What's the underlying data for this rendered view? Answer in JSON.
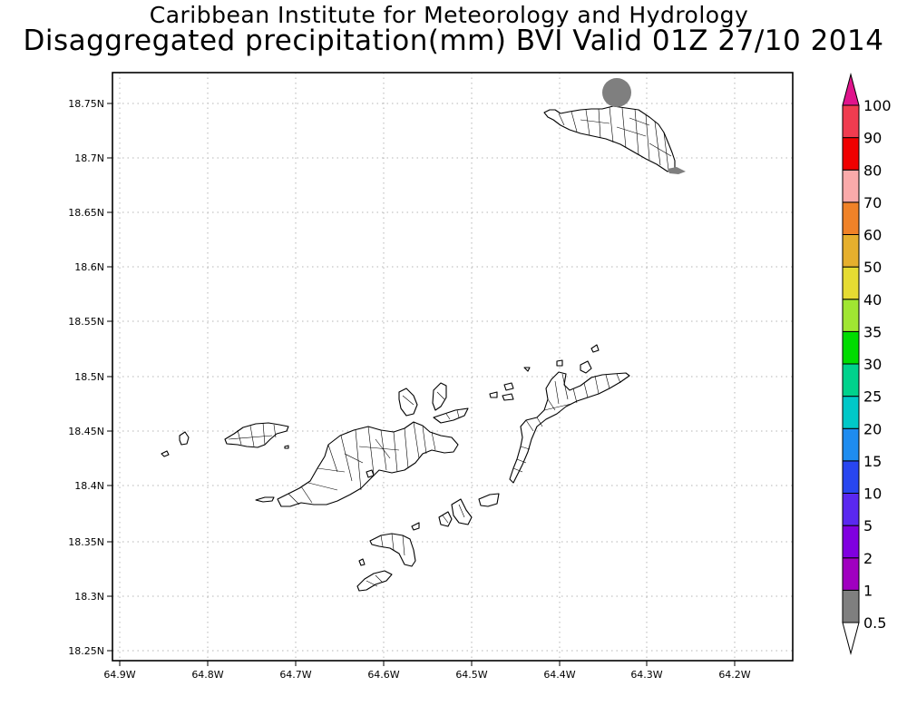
{
  "header": {
    "institute": "Caribbean Institute for Meteorology and Hydrology",
    "title": "Disaggregated precipitation(mm) BVI Valid 01Z 27/10 2014"
  },
  "axes": {
    "lat_ticks": [
      "18.75N",
      "18.7N",
      "18.65N",
      "18.6N",
      "18.55N",
      "18.5N",
      "18.45N",
      "18.4N",
      "18.35N",
      "18.3N",
      "18.25N"
    ],
    "lon_ticks": [
      "64.9W",
      "64.8W",
      "64.7W",
      "64.6W",
      "64.5W",
      "64.4W",
      "64.3W",
      "64.2W"
    ],
    "grid": "dotted"
  },
  "colorbar": {
    "labels": [
      "0.5",
      "1",
      "2",
      "5",
      "10",
      "15",
      "20",
      "25",
      "30",
      "35",
      "40",
      "50",
      "60",
      "70",
      "80",
      "90",
      "100"
    ],
    "colors": [
      "#7f7f7f",
      "#a000c0",
      "#8000e0",
      "#5a28f0",
      "#2846f0",
      "#1e8cf0",
      "#00c8c8",
      "#00d28c",
      "#00dc00",
      "#a0e632",
      "#e6dc32",
      "#e6af2d",
      "#f08228",
      "#faaaaa",
      "#f00000",
      "#f03c50",
      "#e0148c"
    ],
    "below_color": "#ffffff"
  },
  "precip_features": [
    {
      "name": "northwest Anegada",
      "lat": 18.755,
      "lon": -64.335,
      "category": "0.5"
    },
    {
      "name": "east tip Anegada",
      "lat": 18.69,
      "lon": -64.265,
      "category": "0.5"
    }
  ],
  "colors": {
    "land_outline": "#000000",
    "grid": "#b4b4b4"
  }
}
